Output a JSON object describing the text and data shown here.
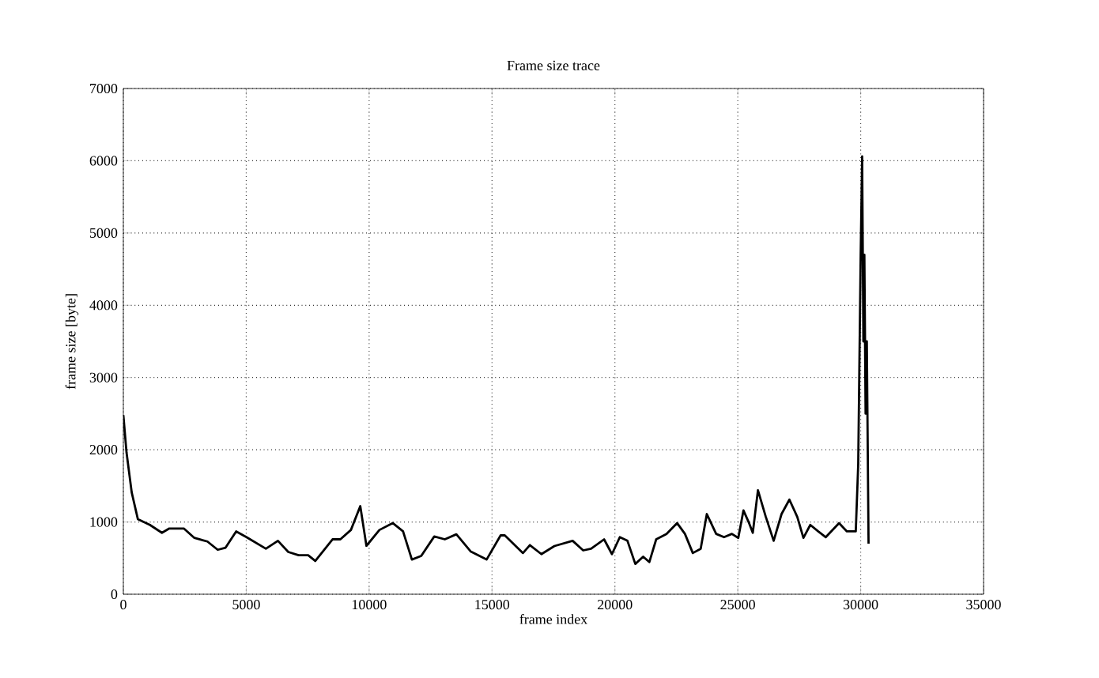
{
  "chart_data": {
    "type": "line",
    "title": "Frame size trace",
    "xlabel": "frame index",
    "ylabel": "frame size [byte]",
    "xlim": [
      0,
      35000
    ],
    "ylim": [
      0,
      7000
    ],
    "xticks": [
      0,
      5000,
      10000,
      15000,
      20000,
      25000,
      30000,
      35000
    ],
    "yticks": [
      0,
      1000,
      2000,
      3000,
      4000,
      5000,
      6000,
      7000
    ],
    "grid": true,
    "marker": "none",
    "line_style": "solid",
    "x": [
      0,
      130,
      340,
      590,
      1080,
      1570,
      1870,
      2460,
      2890,
      3420,
      3840,
      4160,
      4590,
      5010,
      5800,
      6290,
      6710,
      7130,
      7520,
      7810,
      8510,
      8830,
      9260,
      9640,
      9890,
      10420,
      10960,
      11380,
      11740,
      12120,
      12650,
      13080,
      13550,
      14140,
      14780,
      15350,
      15520,
      16260,
      16540,
      17010,
      17540,
      18280,
      18710,
      19030,
      19560,
      19880,
      20200,
      20510,
      20830,
      21150,
      21400,
      21680,
      22100,
      22530,
      22850,
      23170,
      23490,
      23740,
      24120,
      24440,
      24760,
      25020,
      25230,
      25440,
      25610,
      25820,
      26140,
      26460,
      26780,
      27100,
      27420,
      27670,
      27950,
      28270,
      28580,
      29120,
      29440,
      29800,
      29900,
      30000,
      30060,
      30110,
      30150,
      30200,
      30250,
      30320
    ],
    "series": [
      {
        "color": "#000000",
        "values": [
          2480,
          1960,
          1410,
          1040,
          960,
          850,
          910,
          910,
          780,
          730,
          615,
          645,
          870,
          790,
          630,
          740,
          585,
          540,
          540,
          460,
          760,
          760,
          890,
          1220,
          670,
          890,
          985,
          870,
          480,
          530,
          800,
          760,
          830,
          590,
          480,
          815,
          815,
          570,
          680,
          555,
          667,
          740,
          607,
          630,
          760,
          555,
          790,
          740,
          420,
          520,
          445,
          760,
          835,
          985,
          835,
          570,
          630,
          1110,
          835,
          790,
          835,
          780,
          1160,
          1000,
          850,
          1440,
          1070,
          740,
          1110,
          1310,
          1070,
          780,
          960,
          870,
          790,
          985,
          870,
          870,
          1800,
          4700,
          6060,
          3500,
          4700,
          2500,
          3500,
          700
        ]
      }
    ]
  }
}
